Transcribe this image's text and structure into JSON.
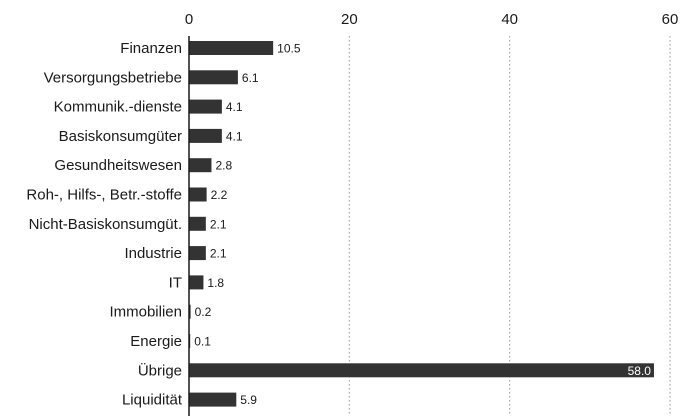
{
  "chart_data": {
    "type": "bar",
    "orientation": "horizontal",
    "categories": [
      "Finanzen",
      "Versorgungsbetriebe",
      "Kommunik.-dienste",
      "Basiskonsumgüter",
      "Gesundheitswesen",
      "Roh-, Hilfs-, Betr.-stoffe",
      "Nicht-Basiskonsumgüt.",
      "Industrie",
      "IT",
      "Immobilien",
      "Energie",
      "Übrige",
      "Liquidität"
    ],
    "values": [
      10.5,
      6.1,
      4.1,
      4.1,
      2.8,
      2.2,
      2.1,
      2.1,
      1.8,
      0.2,
      0.1,
      58.0,
      5.9
    ],
    "value_labels": [
      "10.5",
      "6.1",
      "4.1",
      "4.1",
      "2.8",
      "2.2",
      "2.1",
      "2.1",
      "1.8",
      "0.2",
      "0.1",
      "58.0",
      "5.9"
    ],
    "xlim": [
      0,
      60
    ],
    "xticks": [
      0,
      20,
      40,
      60
    ],
    "xtick_labels": [
      "0",
      "20",
      "40",
      "60"
    ],
    "x_axis_position": "top",
    "grid": true,
    "bar_color": "#333333",
    "label_color_outside": "#1a1a1a",
    "label_color_inside": "#ffffff",
    "title": "",
    "xlabel": "",
    "ylabel": ""
  }
}
